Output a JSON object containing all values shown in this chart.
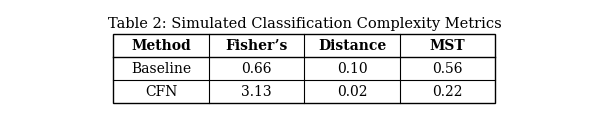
{
  "title": "Table 2: Simulated Classification Complexity Metrics",
  "columns": [
    "Method",
    "Fisher’s",
    "Distance",
    "MST"
  ],
  "rows": [
    [
      "Baseline",
      "0.66",
      "0.10",
      "0.56"
    ],
    [
      "CFN",
      "3.13",
      "0.02",
      "0.22"
    ]
  ],
  "background_color": "#ffffff",
  "title_fontsize": 10.5,
  "table_fontsize": 10.0
}
